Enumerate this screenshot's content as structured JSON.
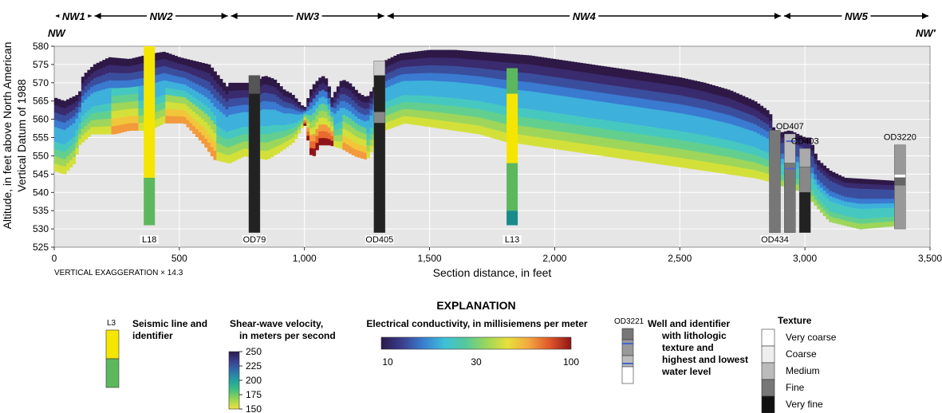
{
  "segments": [
    {
      "label": "NW1",
      "x0": 0,
      "x1": 155
    },
    {
      "label": "NW2",
      "x0": 155,
      "x1": 700
    },
    {
      "label": "NW3",
      "x0": 700,
      "x1": 1325
    },
    {
      "label": "NW4",
      "x0": 1325,
      "x1": 2910
    },
    {
      "label": "NW5",
      "x0": 2910,
      "x1": 3500
    }
  ],
  "section_ends": {
    "left": "NW",
    "right": "NW′"
  },
  "chart_data": {
    "type": "cross-section",
    "xlabel": "Section distance, in feet",
    "ylabel_line1": "Altitude, in feet above North American",
    "ylabel_line2": "Vertical Datum of 1988",
    "xlim": [
      0,
      3500
    ],
    "ylim": [
      525,
      580
    ],
    "xticks": [
      0,
      500,
      1000,
      1500,
      2000,
      2500,
      3000,
      3500
    ],
    "xtick_labels": [
      "0",
      "500",
      "1,000",
      "1,500",
      "2,000",
      "2,500",
      "3,000",
      "3,500"
    ],
    "yticks": [
      525,
      530,
      535,
      540,
      545,
      550,
      555,
      560,
      565,
      570,
      575,
      580
    ],
    "vertical_exaggeration": "VERTICAL EXAGGERATION × 14.3",
    "grid": true,
    "surface_top": [
      [
        0,
        566
      ],
      [
        40,
        565
      ],
      [
        100,
        567
      ],
      [
        115,
        572
      ],
      [
        160,
        575
      ],
      [
        220,
        577
      ],
      [
        300,
        576.5
      ],
      [
        390,
        578
      ],
      [
        440,
        578.5
      ],
      [
        500,
        577
      ],
      [
        560,
        576
      ],
      [
        620,
        575
      ],
      [
        690,
        569
      ],
      [
        700,
        570
      ],
      [
        800,
        570
      ],
      [
        840,
        572
      ],
      [
        880,
        571
      ],
      [
        920,
        568
      ],
      [
        950,
        567
      ],
      [
        1000,
        563
      ],
      [
        1030,
        569
      ],
      [
        1070,
        572
      ],
      [
        1090,
        571
      ],
      [
        1110,
        566
      ],
      [
        1150,
        571
      ],
      [
        1180,
        570
      ],
      [
        1220,
        567
      ],
      [
        1250,
        566
      ],
      [
        1280,
        569
      ],
      [
        1320,
        576
      ],
      [
        1380,
        578
      ],
      [
        1500,
        579
      ],
      [
        1600,
        579
      ],
      [
        1700,
        578.5
      ],
      [
        1800,
        578
      ],
      [
        1900,
        577.5
      ],
      [
        2000,
        576.5
      ],
      [
        2100,
        575.5
      ],
      [
        2200,
        574.5
      ],
      [
        2300,
        573.5
      ],
      [
        2400,
        572.5
      ],
      [
        2500,
        571.5
      ],
      [
        2600,
        570
      ],
      [
        2700,
        568
      ],
      [
        2800,
        565
      ],
      [
        2860,
        562
      ],
      [
        2880,
        556
      ],
      [
        2940,
        557
      ],
      [
        3000,
        555
      ],
      [
        3020,
        555
      ],
      [
        3050,
        549
      ],
      [
        3100,
        546
      ],
      [
        3160,
        544
      ],
      [
        3400,
        543
      ]
    ],
    "surface_bottom": [
      [
        0,
        546
      ],
      [
        40,
        545
      ],
      [
        80,
        548
      ],
      [
        100,
        553
      ],
      [
        150,
        556
      ],
      [
        240,
        556
      ],
      [
        300,
        557
      ],
      [
        380,
        557
      ],
      [
        440,
        559
      ],
      [
        520,
        559
      ],
      [
        600,
        553
      ],
      [
        640,
        549
      ],
      [
        700,
        548
      ],
      [
        760,
        550
      ],
      [
        850,
        549
      ],
      [
        900,
        551
      ],
      [
        960,
        554
      ],
      [
        1000,
        559
      ],
      [
        1030,
        549
      ],
      [
        1060,
        553
      ],
      [
        1100,
        553
      ],
      [
        1150,
        552
      ],
      [
        1200,
        550
      ],
      [
        1250,
        549
      ],
      [
        1280,
        553
      ],
      [
        1320,
        557
      ],
      [
        1400,
        559
      ],
      [
        1500,
        558
      ],
      [
        1600,
        557
      ],
      [
        1700,
        556
      ],
      [
        1800,
        554
      ],
      [
        1900,
        553
      ],
      [
        2000,
        552
      ],
      [
        2100,
        551
      ],
      [
        2200,
        550
      ],
      [
        2300,
        549
      ],
      [
        2400,
        548
      ],
      [
        2500,
        547
      ],
      [
        2600,
        546
      ],
      [
        2700,
        545
      ],
      [
        2800,
        544
      ],
      [
        2860,
        543
      ],
      [
        2900,
        542
      ],
      [
        3000,
        540
      ],
      [
        3060,
        535
      ],
      [
        3100,
        532
      ],
      [
        3160,
        531
      ],
      [
        3220,
        530
      ],
      [
        3380,
        531
      ]
    ],
    "seismic_lines": [
      {
        "id": "L18",
        "x": 380,
        "segments": [
          {
            "from": 580,
            "to": 544,
            "color": "#f5e600"
          },
          {
            "from": 544,
            "to": 531,
            "color": "#5cb85c"
          }
        ]
      },
      {
        "id": "L13",
        "x": 1830,
        "segments": [
          {
            "from": 574,
            "to": 567,
            "color": "#5cb85c"
          },
          {
            "from": 567,
            "to": 548,
            "color": "#f5e600"
          },
          {
            "from": 548,
            "to": 535,
            "color": "#5cb85c"
          },
          {
            "from": 535,
            "to": 531,
            "color": "#1a8a8a"
          }
        ]
      }
    ],
    "wells": [
      {
        "id": "OD79",
        "x": 800,
        "top": 572,
        "bottom": 529,
        "layers": [
          {
            "from": 572,
            "to": 567,
            "color": "#555555"
          },
          {
            "from": 567,
            "to": 529,
            "color": "#222222"
          }
        ]
      },
      {
        "id": "OD405",
        "x": 1300,
        "top": 576,
        "bottom": 529,
        "layers": [
          {
            "from": 576,
            "to": 572,
            "color": "#cccccc"
          },
          {
            "from": 572,
            "to": 562,
            "color": "#222222"
          },
          {
            "from": 562,
            "to": 559,
            "color": "#888888"
          },
          {
            "from": 559,
            "to": 529,
            "color": "#222222"
          }
        ]
      },
      {
        "id": "OD434",
        "x": 2880,
        "top": 557,
        "bottom": 529,
        "layers": [
          {
            "from": 557,
            "to": 529,
            "color": "#777777"
          }
        ]
      },
      {
        "id": "OD407",
        "x": 2940,
        "top": 556,
        "bottom": 529,
        "layers": [
          {
            "from": 556,
            "to": 548,
            "color": "#bbbbbb"
          },
          {
            "from": 548,
            "to": 529,
            "color": "#777777"
          }
        ]
      },
      {
        "id": "OD403",
        "x": 3000,
        "top": 552,
        "bottom": 529,
        "layers": [
          {
            "from": 552,
            "to": 547,
            "color": "#aaaaaa"
          },
          {
            "from": 547,
            "to": 540,
            "color": "#888888"
          },
          {
            "from": 540,
            "to": 529,
            "color": "#222222"
          }
        ]
      },
      {
        "id": "OD3220",
        "x": 3380,
        "top": 553,
        "bottom": 530,
        "layers": [
          {
            "from": 553,
            "to": 545,
            "color": "#999999"
          },
          {
            "from": 545,
            "to": 544,
            "color": "#ffffff"
          },
          {
            "from": 544,
            "to": 542,
            "color": "#666666"
          },
          {
            "from": 542,
            "to": 530,
            "color": "#999999"
          }
        ]
      }
    ],
    "water_levels": [
      {
        "x0": 2920,
        "x1": 2965,
        "y": 546.5,
        "color": "#5566cc"
      },
      {
        "x0": 2925,
        "x1": 2965,
        "y": 554,
        "color": "#5566cc"
      }
    ]
  },
  "legend": {
    "title": "EXPLANATION",
    "conductivity": {
      "title": "Electrical conductivity, in millisiemens per meter",
      "ticks": [
        "10",
        "30",
        "100"
      ],
      "colors": [
        "#2a1a4a",
        "#3b3f8f",
        "#3a7fd0",
        "#3ec0d8",
        "#55c89a",
        "#9dd65a",
        "#e8e03a",
        "#f3a640",
        "#e0562a",
        "#8f1418"
      ]
    },
    "seismic": {
      "id": "L3",
      "label_line1": "Seismic line and",
      "label_line2": "identifier",
      "colors": [
        "#f5e600",
        "#5cb85c"
      ]
    },
    "shear": {
      "title_line1": "Shear-wave velocity,",
      "title_line2": "in meters per second",
      "ticks": [
        "250",
        "225",
        "200",
        "175",
        "150"
      ],
      "colors": [
        "#2a1a4a",
        "#3b3f8f",
        "#2f6fa8",
        "#22a0a0",
        "#3fbf7f",
        "#9cd64f",
        "#f0e040"
      ]
    },
    "well": {
      "id": "OD3221",
      "label_lines": [
        "Well and identifier",
        "with lithologic",
        "texture and",
        "highest and lowest",
        "water level"
      ]
    },
    "texture": {
      "title": "Texture",
      "items": [
        {
          "label": "Very coarse",
          "color": "#ffffff"
        },
        {
          "label": "Coarse",
          "color": "#eeeeee"
        },
        {
          "label": "Medium",
          "color": "#bbbbbb"
        },
        {
          "label": "Fine",
          "color": "#777777"
        },
        {
          "label": "Very fine",
          "color": "#111111"
        }
      ]
    }
  }
}
